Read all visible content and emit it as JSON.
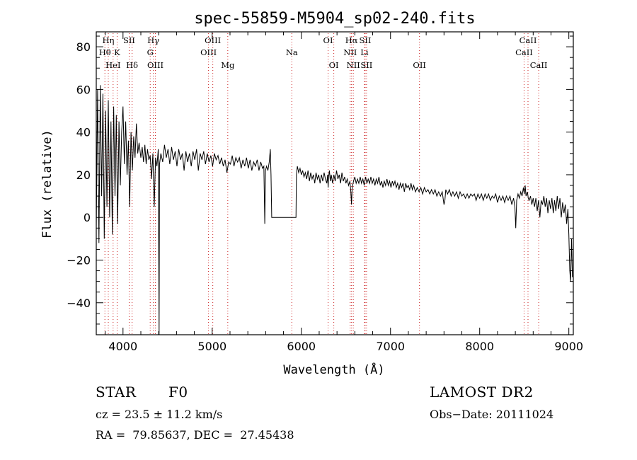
{
  "chart_data": {
    "type": "line",
    "title": "spec-55859-M5904_sp02-240.fits",
    "xlabel": "Wavelength (Å)",
    "ylabel": "Flux (relative)",
    "xlim": [
      3700,
      9050
    ],
    "ylim": [
      -55,
      87
    ],
    "xticks": [
      4000,
      5000,
      6000,
      7000,
      8000,
      9000
    ],
    "yticks": [
      -40,
      -20,
      0,
      20,
      40,
      60,
      80
    ],
    "line_color": "#000000",
    "marker_color": "#cc2222",
    "spectral_lines": [
      {
        "name": "Hη",
        "wavelength": 3835,
        "row": 0
      },
      {
        "name": "Hθ",
        "wavelength": 3797,
        "row": 1
      },
      {
        "name": "HeI",
        "wavelength": 3889,
        "row": 2
      },
      {
        "name": "K",
        "wavelength": 3934,
        "row": 1
      },
      {
        "name": "SII",
        "wavelength": 4069,
        "row": 0
      },
      {
        "name": "Hδ",
        "wavelength": 4102,
        "row": 2
      },
      {
        "name": "Hγ",
        "wavelength": 4340,
        "row": 0
      },
      {
        "name": "G",
        "wavelength": 4305,
        "row": 1
      },
      {
        "name": "OIII",
        "wavelength": 4363,
        "row": 2
      },
      {
        "name": "OIII",
        "wavelength": 5007,
        "row": 0
      },
      {
        "name": "OIII",
        "wavelength": 4959,
        "row": 1
      },
      {
        "name": "Mg",
        "wavelength": 5175,
        "row": 2
      },
      {
        "name": "Na",
        "wavelength": 5893,
        "row": 1
      },
      {
        "name": "OI",
        "wavelength": 6300,
        "row": 0
      },
      {
        "name": "OI",
        "wavelength": 6364,
        "row": 2
      },
      {
        "name": "Hα",
        "wavelength": 6563,
        "row": 0
      },
      {
        "name": "NII",
        "wavelength": 6548,
        "row": 1
      },
      {
        "name": "NII",
        "wavelength": 6583,
        "row": 2
      },
      {
        "name": "SII",
        "wavelength": 6716,
        "row": 0
      },
      {
        "name": "Li",
        "wavelength": 6708,
        "row": 1
      },
      {
        "name": "SII",
        "wavelength": 6731,
        "row": 2
      },
      {
        "name": "OII",
        "wavelength": 7325,
        "row": 2
      },
      {
        "name": "CaII",
        "wavelength": 8542,
        "row": 0
      },
      {
        "name": "CaII",
        "wavelength": 8498,
        "row": 1
      },
      {
        "name": "CaII",
        "wavelength": 8662,
        "row": 2
      }
    ],
    "spectrum": [
      [
        3700,
        -5
      ],
      [
        3715,
        60
      ],
      [
        3730,
        -12
      ],
      [
        3745,
        62
      ],
      [
        3760,
        10
      ],
      [
        3775,
        58
      ],
      [
        3790,
        -10
      ],
      [
        3805,
        50
      ],
      [
        3820,
        5
      ],
      [
        3835,
        55
      ],
      [
        3850,
        0
      ],
      [
        3865,
        45
      ],
      [
        3880,
        -8
      ],
      [
        3895,
        52
      ],
      [
        3910,
        10
      ],
      [
        3925,
        48
      ],
      [
        3940,
        -3
      ],
      [
        3955,
        45
      ],
      [
        3970,
        15
      ],
      [
        3985,
        40
      ],
      [
        4000,
        52
      ],
      [
        4015,
        25
      ],
      [
        4030,
        45
      ],
      [
        4045,
        20
      ],
      [
        4060,
        36
      ],
      [
        4075,
        5
      ],
      [
        4090,
        40
      ],
      [
        4105,
        22
      ],
      [
        4120,
        38
      ],
      [
        4135,
        28
      ],
      [
        4150,
        44
      ],
      [
        4165,
        30
      ],
      [
        4180,
        35
      ],
      [
        4200,
        28
      ],
      [
        4215,
        33
      ],
      [
        4230,
        26
      ],
      [
        4245,
        34
      ],
      [
        4260,
        25
      ],
      [
        4275,
        32
      ],
      [
        4290,
        27
      ],
      [
        4305,
        29
      ],
      [
        4320,
        18
      ],
      [
        4335,
        30
      ],
      [
        4350,
        5
      ],
      [
        4365,
        28
      ],
      [
        4380,
        24
      ],
      [
        4395,
        32
      ],
      [
        4405,
        -55
      ],
      [
        4410,
        25
      ],
      [
        4425,
        30
      ],
      [
        4445,
        26
      ],
      [
        4465,
        34
      ],
      [
        4485,
        28
      ],
      [
        4505,
        32
      ],
      [
        4525,
        25
      ],
      [
        4545,
        33
      ],
      [
        4565,
        27
      ],
      [
        4585,
        31
      ],
      [
        4605,
        24
      ],
      [
        4625,
        32
      ],
      [
        4645,
        27
      ],
      [
        4665,
        30
      ],
      [
        4685,
        22
      ],
      [
        4705,
        31
      ],
      [
        4725,
        26
      ],
      [
        4745,
        30
      ],
      [
        4765,
        24
      ],
      [
        4785,
        31
      ],
      [
        4805,
        27
      ],
      [
        4825,
        32
      ],
      [
        4845,
        22
      ],
      [
        4865,
        30
      ],
      [
        4885,
        27
      ],
      [
        4905,
        31
      ],
      [
        4925,
        25
      ],
      [
        4945,
        30
      ],
      [
        4965,
        26
      ],
      [
        4985,
        29
      ],
      [
        5005,
        24
      ],
      [
        5025,
        30
      ],
      [
        5045,
        27
      ],
      [
        5065,
        29
      ],
      [
        5085,
        25
      ],
      [
        5105,
        28
      ],
      [
        5125,
        24
      ],
      [
        5145,
        27
      ],
      [
        5165,
        21
      ],
      [
        5185,
        26
      ],
      [
        5205,
        25
      ],
      [
        5225,
        29
      ],
      [
        5245,
        24
      ],
      [
        5265,
        28
      ],
      [
        5285,
        26
      ],
      [
        5305,
        28
      ],
      [
        5325,
        23
      ],
      [
        5345,
        27
      ],
      [
        5365,
        24
      ],
      [
        5385,
        28
      ],
      [
        5405,
        23
      ],
      [
        5425,
        27
      ],
      [
        5445,
        22
      ],
      [
        5465,
        26
      ],
      [
        5485,
        24
      ],
      [
        5505,
        27
      ],
      [
        5525,
        22
      ],
      [
        5545,
        26
      ],
      [
        5565,
        23
      ],
      [
        5580,
        24
      ],
      [
        5590,
        -3
      ],
      [
        5598,
        22
      ],
      [
        5610,
        24
      ],
      [
        5625,
        22
      ],
      [
        5640,
        26
      ],
      [
        5652,
        32
      ],
      [
        5660,
        20
      ],
      [
        5668,
        0
      ],
      [
        5700,
        0
      ],
      [
        5800,
        0
      ],
      [
        5900,
        0
      ],
      [
        5940,
        0
      ],
      [
        5945,
        20
      ],
      [
        5955,
        24
      ],
      [
        5970,
        21
      ],
      [
        5985,
        23
      ],
      [
        6000,
        20
      ],
      [
        6015,
        22
      ],
      [
        6030,
        19
      ],
      [
        6045,
        21
      ],
      [
        6060,
        18
      ],
      [
        6075,
        22
      ],
      [
        6090,
        17
      ],
      [
        6105,
        21
      ],
      [
        6120,
        18
      ],
      [
        6135,
        20
      ],
      [
        6150,
        16
      ],
      [
        6165,
        21
      ],
      [
        6180,
        18
      ],
      [
        6195,
        20
      ],
      [
        6210,
        16
      ],
      [
        6225,
        20
      ],
      [
        6240,
        17
      ],
      [
        6255,
        21
      ],
      [
        6270,
        18
      ],
      [
        6285,
        16
      ],
      [
        6295,
        20
      ],
      [
        6300,
        14
      ],
      [
        6305,
        19
      ],
      [
        6315,
        22
      ],
      [
        6325,
        17
      ],
      [
        6335,
        20
      ],
      [
        6350,
        16
      ],
      [
        6365,
        20
      ],
      [
        6380,
        17
      ],
      [
        6395,
        22
      ],
      [
        6410,
        18
      ],
      [
        6425,
        20
      ],
      [
        6440,
        16
      ],
      [
        6455,
        21
      ],
      [
        6470,
        17
      ],
      [
        6485,
        19
      ],
      [
        6500,
        16
      ],
      [
        6515,
        18
      ],
      [
        6530,
        15
      ],
      [
        6545,
        17
      ],
      [
        6555,
        12
      ],
      [
        6562,
        6
      ],
      [
        6570,
        14
      ],
      [
        6585,
        17
      ],
      [
        6600,
        19
      ],
      [
        6615,
        16
      ],
      [
        6630,
        18
      ],
      [
        6645,
        16
      ],
      [
        6660,
        19
      ],
      [
        6675,
        16
      ],
      [
        6690,
        18
      ],
      [
        6705,
        15
      ],
      [
        6720,
        19
      ],
      [
        6735,
        16
      ],
      [
        6750,
        18
      ],
      [
        6765,
        16
      ],
      [
        6780,
        19
      ],
      [
        6795,
        16
      ],
      [
        6810,
        18
      ],
      [
        6825,
        15
      ],
      [
        6840,
        18
      ],
      [
        6855,
        16
      ],
      [
        6870,
        19
      ],
      [
        6885,
        15
      ],
      [
        6900,
        17
      ],
      [
        6915,
        14
      ],
      [
        6930,
        17
      ],
      [
        6945,
        15
      ],
      [
        6960,
        18
      ],
      [
        6975,
        15
      ],
      [
        6990,
        17
      ],
      [
        7005,
        14
      ],
      [
        7020,
        17
      ],
      [
        7035,
        15
      ],
      [
        7050,
        17
      ],
      [
        7065,
        14
      ],
      [
        7080,
        16
      ],
      [
        7095,
        13
      ],
      [
        7110,
        16
      ],
      [
        7125,
        14
      ],
      [
        7140,
        16
      ],
      [
        7155,
        12
      ],
      [
        7170,
        16
      ],
      [
        7185,
        14
      ],
      [
        7200,
        15
      ],
      [
        7215,
        13
      ],
      [
        7230,
        16
      ],
      [
        7245,
        13
      ],
      [
        7260,
        15
      ],
      [
        7280,
        12
      ],
      [
        7300,
        14
      ],
      [
        7320,
        12
      ],
      [
        7340,
        14
      ],
      [
        7360,
        11
      ],
      [
        7380,
        14
      ],
      [
        7400,
        12
      ],
      [
        7420,
        13
      ],
      [
        7440,
        11
      ],
      [
        7460,
        13
      ],
      [
        7480,
        11
      ],
      [
        7500,
        13
      ],
      [
        7520,
        10
      ],
      [
        7540,
        12
      ],
      [
        7560,
        10
      ],
      [
        7580,
        12
      ],
      [
        7600,
        6
      ],
      [
        7610,
        8
      ],
      [
        7620,
        13
      ],
      [
        7640,
        11
      ],
      [
        7660,
        13
      ],
      [
        7680,
        10
      ],
      [
        7700,
        12
      ],
      [
        7720,
        10
      ],
      [
        7740,
        12
      ],
      [
        7760,
        9
      ],
      [
        7780,
        12
      ],
      [
        7800,
        10
      ],
      [
        7820,
        11
      ],
      [
        7840,
        9
      ],
      [
        7860,
        11
      ],
      [
        7880,
        9
      ],
      [
        7900,
        11
      ],
      [
        7920,
        10
      ],
      [
        7940,
        11
      ],
      [
        7960,
        8
      ],
      [
        7980,
        11
      ],
      [
        8000,
        9
      ],
      [
        8020,
        11
      ],
      [
        8040,
        8
      ],
      [
        8060,
        11
      ],
      [
        8080,
        9
      ],
      [
        8100,
        11
      ],
      [
        8120,
        8
      ],
      [
        8140,
        10
      ],
      [
        8160,
        9
      ],
      [
        8180,
        11
      ],
      [
        8200,
        7
      ],
      [
        8220,
        10
      ],
      [
        8240,
        8
      ],
      [
        8260,
        10
      ],
      [
        8280,
        7
      ],
      [
        8300,
        10
      ],
      [
        8320,
        8
      ],
      [
        8340,
        10
      ],
      [
        8360,
        6
      ],
      [
        8380,
        9
      ],
      [
        8395,
        5
      ],
      [
        8405,
        -5
      ],
      [
        8415,
        8
      ],
      [
        8430,
        11
      ],
      [
        8445,
        9
      ],
      [
        8460,
        12
      ],
      [
        8475,
        10
      ],
      [
        8490,
        14
      ],
      [
        8500,
        11
      ],
      [
        8510,
        15
      ],
      [
        8520,
        10
      ],
      [
        8535,
        12
      ],
      [
        8545,
        9
      ],
      [
        8555,
        8
      ],
      [
        8570,
        10
      ],
      [
        8585,
        6
      ],
      [
        8600,
        9
      ],
      [
        8615,
        5
      ],
      [
        8630,
        9
      ],
      [
        8645,
        3
      ],
      [
        8660,
        8
      ],
      [
        8675,
        0
      ],
      [
        8690,
        8
      ],
      [
        8705,
        6
      ],
      [
        8720,
        10
      ],
      [
        8735,
        5
      ],
      [
        8750,
        9
      ],
      [
        8765,
        2
      ],
      [
        8780,
        8
      ],
      [
        8795,
        4
      ],
      [
        8810,
        9
      ],
      [
        8825,
        2
      ],
      [
        8840,
        8
      ],
      [
        8855,
        3
      ],
      [
        8870,
        10
      ],
      [
        8885,
        4
      ],
      [
        8900,
        9
      ],
      [
        8915,
        0
      ],
      [
        8930,
        7
      ],
      [
        8945,
        2
      ],
      [
        8960,
        6
      ],
      [
        8975,
        -3
      ],
      [
        8990,
        4
      ],
      [
        9000,
        -8
      ],
      [
        9010,
        -25
      ],
      [
        9020,
        -30
      ],
      [
        9030,
        -10
      ],
      [
        9040,
        -28
      ]
    ]
  },
  "info": {
    "object_class": "STAR",
    "subclass": "F0",
    "survey": "LAMOST DR2",
    "redshift": "cz = 23.5 ± 11.2 km/s",
    "obs_date": "Obs−Date: 20111024",
    "coords": "RA =  79.85637, DEC =  27.45438"
  }
}
